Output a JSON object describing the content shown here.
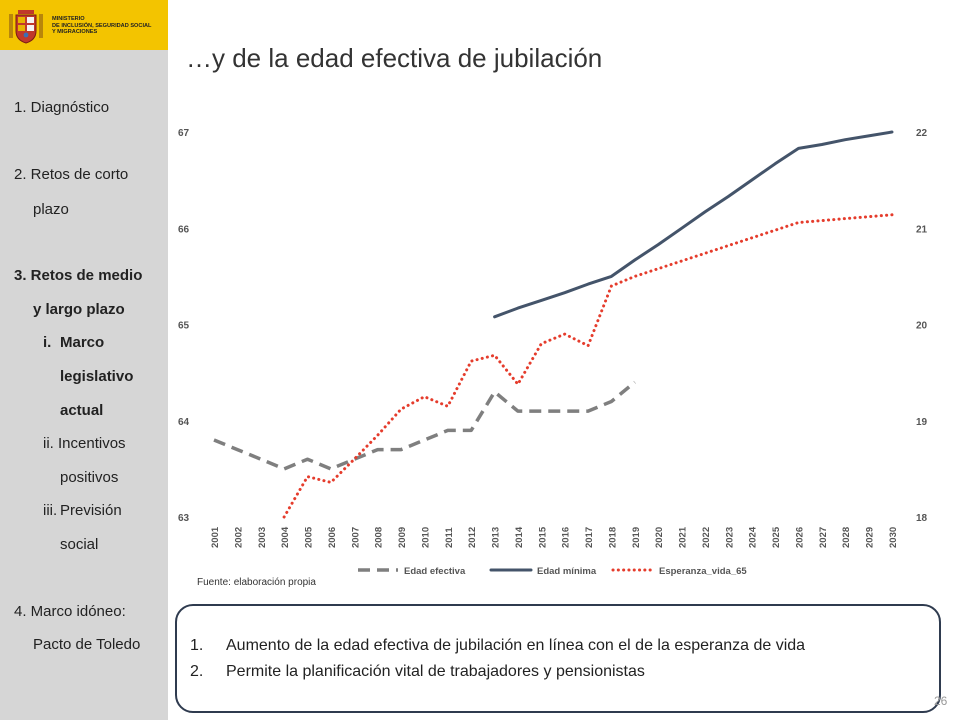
{
  "header": {
    "ministry_lines": [
      "MINISTERIO",
      "DE INCLUSIÓN, SEGURIDAD SOCIAL",
      "Y MIGRACIONES"
    ]
  },
  "sidebar": {
    "items": [
      {
        "text": "1. Diagnóstico",
        "bold": false
      },
      {
        "text": "2. Retos de corto",
        "bold": false
      },
      {
        "text": "plazo",
        "bold": false
      },
      {
        "text": "3. Retos de medio",
        "bold": true
      },
      {
        "text": "y largo plazo",
        "bold": true
      },
      {
        "text": "i.",
        "bold": true
      },
      {
        "text": "Marco",
        "bold": true
      },
      {
        "text": "legislativo",
        "bold": true
      },
      {
        "text": "actual",
        "bold": true
      },
      {
        "text": "ii. Incentivos",
        "bold": false
      },
      {
        "text": "positivos",
        "bold": false
      },
      {
        "text": "iii.",
        "bold": false
      },
      {
        "text": "Previsión",
        "bold": false
      },
      {
        "text": "social",
        "bold": false
      },
      {
        "text": "4. Marco idóneo:",
        "bold": false
      },
      {
        "text": "Pacto de Toledo",
        "bold": false
      }
    ]
  },
  "page_title": "…y de la edad efectiva de jubilación",
  "source": "Fuente: elaboración propia",
  "summary": {
    "points": [
      {
        "num": "1.",
        "text": "Aumento de la edad efectiva de jubilación en línea con el de la esperanza de vida"
      },
      {
        "num": "2.",
        "text": "Permite la planificación vital de trabajadores y pensionistas"
      }
    ]
  },
  "page_number": "26",
  "chart_data": {
    "type": "line",
    "categories": [
      "2001",
      "2002",
      "2003",
      "2004",
      "2005",
      "2006",
      "2007",
      "2008",
      "2009",
      "2010",
      "2011",
      "2012",
      "2013",
      "2014",
      "2015",
      "2016",
      "2017",
      "2018",
      "2019",
      "2020",
      "2021",
      "2022",
      "2023",
      "2024",
      "2025",
      "2026",
      "2027",
      "2028",
      "2029",
      "2030"
    ],
    "y_left": {
      "min": 63,
      "max": 67,
      "ticks": [
        "63",
        "64",
        "65",
        "66",
        "67"
      ]
    },
    "y_right": {
      "min": 18,
      "max": 22,
      "ticks": [
        "18",
        "19",
        "20",
        "21",
        "22"
      ]
    },
    "series": [
      {
        "name": "Edad efectiva",
        "axis": "left",
        "color": "#7f7f7f",
        "style": "dashed",
        "values": [
          63.8,
          63.7,
          63.6,
          63.5,
          63.6,
          63.5,
          63.6,
          63.7,
          63.7,
          63.8,
          63.9,
          63.9,
          64.3,
          64.1,
          64.1,
          64.1,
          64.1,
          64.2,
          64.4,
          null,
          null,
          null,
          null,
          null,
          null,
          null,
          null,
          null,
          null,
          null
        ]
      },
      {
        "name": "Edad mínima",
        "axis": "left",
        "color": "#44546a",
        "style": "solid",
        "values": [
          null,
          null,
          null,
          null,
          null,
          null,
          null,
          null,
          null,
          null,
          null,
          null,
          65.08,
          65.17,
          65.25,
          65.33,
          65.42,
          65.5,
          65.67,
          65.83,
          66.0,
          66.17,
          66.33,
          66.5,
          66.67,
          66.83,
          66.87,
          66.92,
          66.96,
          67.0
        ]
      },
      {
        "name": "Esperanza_vida_65",
        "axis": "right",
        "color": "#e53c2c",
        "style": "dotted",
        "values": [
          null,
          null,
          null,
          18.0,
          18.42,
          18.36,
          18.6,
          18.85,
          19.12,
          19.25,
          19.15,
          19.62,
          19.68,
          19.38,
          19.8,
          19.9,
          19.78,
          20.4,
          20.5,
          20.58,
          20.66,
          20.74,
          20.82,
          20.9,
          20.98,
          21.06,
          21.08,
          21.1,
          21.12,
          21.14
        ]
      }
    ]
  }
}
